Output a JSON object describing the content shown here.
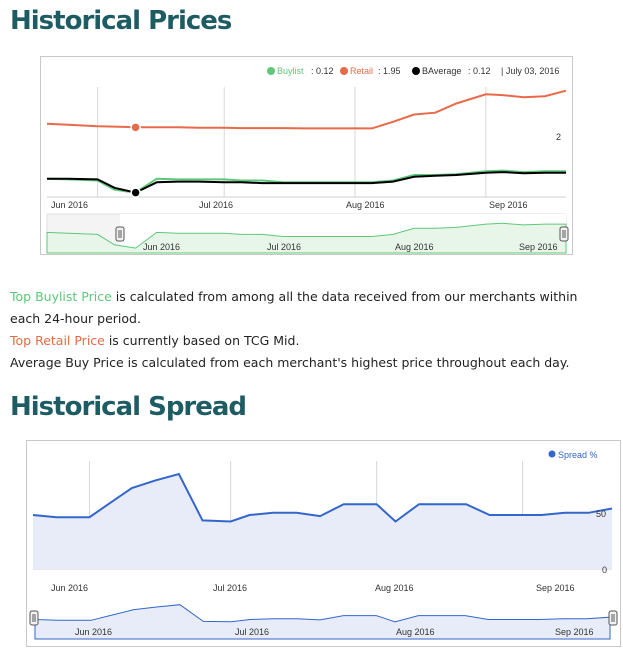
{
  "titles": {
    "historical_prices": "Historical Prices",
    "historical_spread": "Historical Spread"
  },
  "colors": {
    "heading": "#1e5c63",
    "buylist": "#5ec87a",
    "retail": "#e86a4a",
    "average": "#000000",
    "spread": "#3366cc",
    "spread_fill": "#e8ecf8",
    "navigator_fill": "#e8f6ea"
  },
  "legend": {
    "buylist_label": "Buylist",
    "buylist_value": ": 0.12",
    "retail_label": "Retail",
    "retail_value": ": 1.95",
    "average_label": "BAverage",
    "average_value": ": 0.12",
    "date_text": "| July 03, 2016",
    "spread_label": "Spread %"
  },
  "axis": {
    "x_ticks_main": [
      "Jun 2016",
      "Jul 2016",
      "Aug 2016",
      "Sep 2016"
    ],
    "x_ticks_nav": [
      "Jun 2016",
      "Jul 2016",
      "Aug 2016",
      "Sep 2016"
    ],
    "prices_y_tick": "2",
    "spread_y_ticks": [
      "50",
      "0"
    ]
  },
  "descriptions": {
    "buylist_term": "Top Buylist Price",
    "buylist_text": " is calculated from among all the data received from our merchants within each 24-hour period.",
    "retail_term": "Top Retail Price",
    "retail_text": " is currently based on TCG Mid.",
    "average_term": "Average Buy Price",
    "average_text": " is calculated from each merchant's highest price throughout each day."
  },
  "chart_data": [
    {
      "type": "line",
      "title": "Historical Prices",
      "x": [
        "2016-05-20",
        "2016-05-25",
        "2016-06-01",
        "2016-06-05",
        "2016-06-10",
        "2016-06-15",
        "2016-06-20",
        "2016-06-25",
        "2016-07-01",
        "2016-07-05",
        "2016-07-10",
        "2016-07-15",
        "2016-07-20",
        "2016-07-25",
        "2016-08-01",
        "2016-08-05",
        "2016-08-10",
        "2016-08-15",
        "2016-08-20",
        "2016-08-25",
        "2016-09-01",
        "2016-09-05",
        "2016-09-10",
        "2016-09-15",
        "2016-09-20"
      ],
      "series": [
        {
          "name": "Retail",
          "values": [
            2.0,
            1.97,
            1.93,
            1.92,
            1.9,
            1.9,
            1.9,
            1.89,
            1.89,
            1.88,
            1.88,
            1.88,
            1.87,
            1.87,
            1.87,
            1.87,
            2.05,
            2.25,
            2.3,
            2.55,
            2.8,
            2.78,
            2.72,
            2.75,
            2.9
          ]
        },
        {
          "name": "Buylist",
          "values": [
            0.5,
            0.48,
            0.45,
            0.2,
            0.12,
            0.5,
            0.48,
            0.48,
            0.48,
            0.45,
            0.45,
            0.4,
            0.4,
            0.4,
            0.4,
            0.4,
            0.45,
            0.6,
            0.6,
            0.62,
            0.7,
            0.72,
            0.68,
            0.7,
            0.7
          ]
        },
        {
          "name": "BAverage",
          "values": [
            0.5,
            0.5,
            0.48,
            0.25,
            0.12,
            0.4,
            0.42,
            0.42,
            0.4,
            0.4,
            0.38,
            0.38,
            0.38,
            0.38,
            0.38,
            0.38,
            0.42,
            0.55,
            0.58,
            0.6,
            0.66,
            0.68,
            0.65,
            0.66,
            0.66
          ]
        }
      ],
      "legend": "top-right",
      "grid": true
    },
    {
      "type": "area",
      "title": "Historical Spread",
      "x": [
        "2016-05-20",
        "2016-05-25",
        "2016-06-01",
        "2016-06-05",
        "2016-06-10",
        "2016-06-15",
        "2016-06-20",
        "2016-06-25",
        "2016-07-01",
        "2016-07-05",
        "2016-07-10",
        "2016-07-15",
        "2016-07-20",
        "2016-07-25",
        "2016-08-01",
        "2016-08-05",
        "2016-08-10",
        "2016-08-15",
        "2016-08-20",
        "2016-08-25",
        "2016-09-01",
        "2016-09-05",
        "2016-09-10",
        "2016-09-15",
        "2016-09-20"
      ],
      "series": [
        {
          "name": "Spread %",
          "values": [
            50,
            48,
            48,
            60,
            75,
            82,
            88,
            45,
            44,
            50,
            52,
            52,
            49,
            60,
            60,
            44,
            60,
            60,
            60,
            50,
            50,
            50,
            52,
            52,
            56
          ]
        }
      ],
      "ylim": [
        0,
        100
      ],
      "legend": "top-right",
      "grid": true
    }
  ]
}
